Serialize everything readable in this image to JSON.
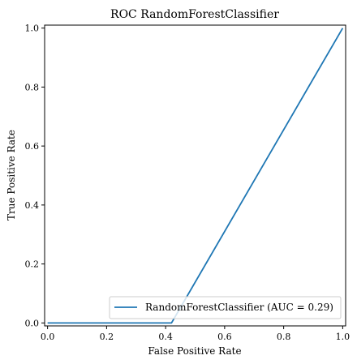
{
  "chart_data": {
    "type": "line",
    "title": "ROC RandomForestClassifier",
    "xlabel": "False Positive Rate",
    "ylabel": "True Positive Rate",
    "xlim": [
      -0.01,
      1.01
    ],
    "ylim": [
      -0.01,
      1.01
    ],
    "xticks": [
      0.0,
      0.2,
      0.4,
      0.6,
      0.8,
      1.0
    ],
    "yticks": [
      0.0,
      0.2,
      0.4,
      0.6,
      0.8,
      1.0
    ],
    "xtick_labels": [
      "0.0",
      "0.2",
      "0.4",
      "0.6",
      "0.8",
      "1.0"
    ],
    "ytick_labels": [
      "0.0",
      "0.2",
      "0.4",
      "0.6",
      "0.8",
      "1.0"
    ],
    "grid": false,
    "legend_position": "bottom-right",
    "series": [
      {
        "name": "RandomForestClassifier (AUC = 0.29)",
        "color": "#1f77b4",
        "x": [
          0.0,
          0.42,
          1.0
        ],
        "y": [
          0.0,
          0.0,
          1.0
        ]
      }
    ]
  }
}
